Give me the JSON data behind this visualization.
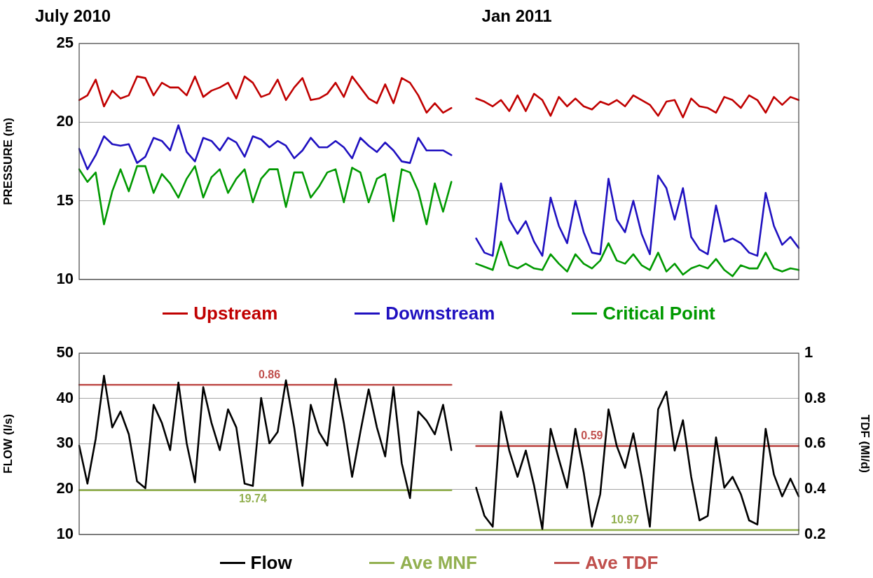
{
  "chart_data": [
    {
      "type": "line",
      "ylabel": "PRESSURE (m)",
      "annotations": [
        "July 2010",
        "Jan 2011"
      ],
      "categories": [
        null,
        null,
        null,
        null,
        null,
        null,
        null,
        null,
        null,
        null,
        null,
        null,
        null,
        null,
        null,
        null,
        null,
        null,
        null,
        null,
        null,
        null,
        null,
        null,
        null,
        null,
        null,
        null,
        null,
        null,
        null,
        null,
        null,
        null,
        null,
        null,
        null,
        null,
        null,
        null,
        null,
        null,
        null,
        null,
        null,
        null,
        null,
        null,
        null,
        null,
        null,
        null,
        null,
        null,
        null,
        null,
        null,
        null,
        null,
        null,
        null,
        null,
        null,
        null,
        null,
        null,
        null,
        null,
        null,
        null,
        null,
        null,
        null,
        null,
        null,
        null,
        null,
        null,
        null,
        null,
        null,
        null,
        null,
        null,
        null,
        null,
        null,
        null
      ],
      "ylim": [
        10,
        25
      ],
      "yticks": [
        10,
        15,
        20,
        25
      ],
      "grid": "y",
      "legend": "bottom",
      "tick_labels": "y",
      "series": [
        {
          "name": "Upstream",
          "color": "#c00000",
          "values": [
            21.4,
            21.7,
            22.7,
            21.0,
            22.0,
            21.5,
            21.7,
            22.9,
            22.8,
            21.7,
            22.5,
            22.2,
            22.2,
            21.7,
            22.9,
            21.6,
            22.0,
            22.2,
            22.5,
            21.5,
            22.9,
            22.5,
            21.6,
            21.8,
            22.7,
            21.4,
            22.2,
            22.8,
            21.4,
            21.5,
            21.8,
            22.5,
            21.6,
            22.9,
            22.2,
            21.5,
            21.2,
            22.4,
            21.2,
            22.8,
            22.5,
            21.7,
            20.6,
            21.2,
            20.6,
            20.9,
            null,
            null,
            null,
            null,
            null,
            null,
            null,
            null,
            null,
            null,
            null,
            null,
            null,
            null,
            null,
            null,
            null,
            null,
            null,
            null,
            null,
            null,
            null,
            null,
            null,
            null,
            null,
            null,
            null,
            null,
            null,
            null,
            null,
            null,
            null,
            null,
            null,
            null,
            null,
            null,
            null,
            null
          ]
        },
        {
          "name": "Downstream",
          "color": "#1f10c0",
          "values": [
            18.3,
            17.0,
            17.9,
            19.1,
            18.6,
            18.5,
            18.6,
            17.4,
            17.8,
            19.0,
            18.8,
            18.2,
            19.8,
            18.1,
            17.5,
            19.0,
            18.8,
            18.2,
            19.0,
            18.7,
            17.8,
            19.1,
            18.9,
            18.4,
            18.8,
            18.5,
            17.7,
            18.2,
            19.0,
            18.4,
            18.4,
            18.8,
            18.4,
            17.7,
            19.0,
            18.5,
            18.1,
            18.7,
            18.2,
            17.5,
            17.4,
            19.0,
            18.2,
            18.2,
            18.2,
            17.9,
            null,
            null,
            null,
            null,
            null,
            null,
            null,
            null,
            null,
            null,
            null,
            null,
            null,
            null,
            null,
            null,
            null,
            null,
            null,
            null,
            null,
            null,
            null,
            null,
            null,
            null,
            null,
            null,
            null,
            null,
            null,
            null,
            null,
            null,
            null,
            null,
            null,
            null,
            null,
            null,
            null,
            null
          ]
        },
        {
          "name": "Critical Point",
          "color": "#009900",
          "values": [
            17.0,
            16.2,
            16.8,
            13.5,
            15.6,
            17.0,
            15.6,
            17.2,
            17.2,
            15.5,
            16.7,
            16.1,
            15.2,
            16.4,
            17.2,
            15.2,
            16.5,
            17.0,
            15.5,
            16.4,
            17.0,
            14.9,
            16.4,
            17.0,
            17.0,
            14.6,
            16.8,
            16.8,
            15.2,
            15.9,
            16.8,
            17.0,
            14.9,
            17.1,
            16.8,
            14.9,
            16.4,
            16.7,
            13.7,
            17.0,
            16.8,
            15.6,
            13.5,
            16.1,
            14.3,
            16.2,
            null,
            null,
            null,
            null,
            null,
            null,
            null,
            null,
            null,
            null,
            null,
            null,
            null,
            null,
            null,
            null,
            null,
            null,
            null,
            null,
            null,
            null,
            null,
            null,
            null,
            null,
            null,
            null,
            null,
            null,
            null,
            null,
            null,
            null,
            null,
            null,
            null,
            null,
            null,
            null,
            null,
            null
          ]
        },
        {
          "color": "#c00000",
          "values": [
            null,
            null,
            null,
            null,
            null,
            null,
            null,
            null,
            null,
            null,
            null,
            null,
            null,
            null,
            null,
            null,
            null,
            null,
            null,
            null,
            null,
            null,
            null,
            null,
            null,
            null,
            null,
            null,
            null,
            null,
            null,
            null,
            null,
            null,
            null,
            null,
            null,
            null,
            null,
            null,
            null,
            null,
            null,
            null,
            null,
            null,
            null,
            null,
            21.5,
            21.3,
            21.0,
            21.4,
            20.7,
            21.7,
            20.7,
            21.8,
            21.4,
            20.4,
            21.6,
            21.0,
            21.5,
            21.0,
            20.8,
            21.3,
            21.1,
            21.4,
            21.0,
            21.7,
            21.4,
            21.1,
            20.4,
            21.3,
            21.4,
            20.3,
            21.5,
            21.0,
            20.9,
            20.6,
            21.6,
            21.4,
            20.9,
            21.7,
            21.4,
            20.6,
            21.6,
            21.1,
            21.6,
            21.4
          ]
        },
        {
          "color": "#1f10c0",
          "values": [
            null,
            null,
            null,
            null,
            null,
            null,
            null,
            null,
            null,
            null,
            null,
            null,
            null,
            null,
            null,
            null,
            null,
            null,
            null,
            null,
            null,
            null,
            null,
            null,
            null,
            null,
            null,
            null,
            null,
            null,
            null,
            null,
            null,
            null,
            null,
            null,
            null,
            null,
            null,
            null,
            null,
            null,
            null,
            null,
            null,
            null,
            null,
            null,
            12.6,
            11.7,
            11.5,
            16.1,
            13.8,
            12.9,
            13.7,
            12.4,
            11.5,
            15.2,
            13.4,
            12.3,
            15.0,
            13.0,
            11.7,
            11.6,
            16.4,
            13.8,
            13.0,
            15.0,
            12.9,
            11.6,
            16.6,
            15.8,
            13.8,
            15.8,
            12.7,
            11.9,
            11.6,
            14.7,
            12.4,
            12.6,
            12.3,
            11.7,
            11.5,
            15.5,
            13.4,
            12.2,
            12.7,
            12.0
          ]
        },
        {
          "color": "#009900",
          "values": [
            null,
            null,
            null,
            null,
            null,
            null,
            null,
            null,
            null,
            null,
            null,
            null,
            null,
            null,
            null,
            null,
            null,
            null,
            null,
            null,
            null,
            null,
            null,
            null,
            null,
            null,
            null,
            null,
            null,
            null,
            null,
            null,
            null,
            null,
            null,
            null,
            null,
            null,
            null,
            null,
            null,
            null,
            null,
            null,
            null,
            null,
            null,
            null,
            11.0,
            10.8,
            10.6,
            12.4,
            10.9,
            10.7,
            11.0,
            10.7,
            10.6,
            11.6,
            11.0,
            10.5,
            11.6,
            11.0,
            10.7,
            11.2,
            12.3,
            11.2,
            11.0,
            11.6,
            10.9,
            10.6,
            11.7,
            10.5,
            11.0,
            10.3,
            10.7,
            10.9,
            10.7,
            11.3,
            10.6,
            10.2,
            10.9,
            10.7,
            10.7,
            11.7,
            10.7,
            10.5,
            10.7,
            10.6
          ]
        }
      ]
    },
    {
      "type": "line",
      "ylabel": "FLOW (l/s)",
      "y2label": "TDF (Ml/d)",
      "categories": [
        null,
        null,
        null,
        null,
        null,
        null,
        null,
        null,
        null,
        null,
        null,
        null,
        null,
        null,
        null,
        null,
        null,
        null,
        null,
        null,
        null,
        null,
        null,
        null,
        null,
        null,
        null,
        null,
        null,
        null,
        null,
        null,
        null,
        null,
        null,
        null,
        null,
        null,
        null,
        null,
        null,
        null,
        null,
        null,
        null,
        null,
        null,
        null,
        null,
        null,
        null,
        null,
        null,
        null,
        null,
        null,
        null,
        null,
        null,
        null,
        null,
        null,
        null,
        null,
        null,
        null,
        null,
        null,
        null,
        null,
        null,
        null,
        null,
        null,
        null,
        null,
        null,
        null,
        null,
        null,
        null,
        null,
        null,
        null,
        null,
        null,
        null,
        null
      ],
      "ylim": [
        10,
        50
      ],
      "yticks": [
        10,
        20,
        30,
        40,
        50
      ],
      "y2lim": [
        0.2,
        1
      ],
      "y2ticks": [
        {
          "value": 0.2,
          "label": "0.2"
        },
        {
          "value": 0.4,
          "label": "0.4"
        },
        {
          "value": 0.6,
          "label": "0.6"
        },
        {
          "value": 0.8,
          "label": "0.8"
        },
        1
      ],
      "grid": "y",
      "legend": "bottom",
      "tick_labels": "y",
      "series": [
        {
          "name": "Flow",
          "color": "#000000",
          "values": [
            29.6,
            21.2,
            31.1,
            45.0,
            33.6,
            37.1,
            32.1,
            21.7,
            20.2,
            38.6,
            34.6,
            28.6,
            43.5,
            30.1,
            21.5,
            42.5,
            34.6,
            28.6,
            37.6,
            33.6,
            21.2,
            20.7,
            40.1,
            30.1,
            32.6,
            44.0,
            33.6,
            20.7,
            38.6,
            32.6,
            29.6,
            44.3,
            34.6,
            22.7,
            32.6,
            42.0,
            33.6,
            27.2,
            42.5,
            25.7,
            18.0,
            37.1,
            35.1,
            32.1,
            38.6,
            28.6,
            null,
            null,
            null,
            null,
            null,
            null,
            null,
            null,
            null,
            null,
            null,
            null,
            null,
            null,
            null,
            null,
            null,
            null,
            null,
            null,
            null,
            null,
            null,
            null,
            null,
            null,
            null,
            null,
            null,
            null,
            null,
            null,
            null,
            null,
            null,
            null,
            null,
            null,
            null,
            null,
            null,
            null
          ]
        },
        {
          "name": "Ave MNF",
          "color": "#92b050",
          "values": [
            19.74,
            19.74,
            19.74,
            19.74,
            19.74,
            19.74,
            19.74,
            19.74,
            19.74,
            19.74,
            19.74,
            19.74,
            19.74,
            19.74,
            19.74,
            19.74,
            19.74,
            19.74,
            19.74,
            19.74,
            19.74,
            19.74,
            19.74,
            19.74,
            19.74,
            19.74,
            19.74,
            19.74,
            19.74,
            19.74,
            19.74,
            19.74,
            19.74,
            19.74,
            19.74,
            19.74,
            19.74,
            19.74,
            19.74,
            19.74,
            19.74,
            19.74,
            19.74,
            19.74,
            19.74,
            19.74,
            null,
            null,
            null,
            null,
            null,
            null,
            null,
            null,
            null,
            null,
            null,
            null,
            null,
            null,
            null,
            null,
            null,
            null,
            null,
            null,
            null,
            null,
            null,
            null,
            null,
            null,
            null,
            null,
            null,
            null,
            null,
            null,
            null,
            null,
            null,
            null,
            null,
            null,
            null,
            null,
            null,
            null
          ],
          "value_labels": [
            null,
            null,
            null,
            null,
            null,
            null,
            null,
            null,
            null,
            null,
            null,
            null,
            null,
            null,
            null,
            null,
            null,
            null,
            null,
            null,
            null,
            "19.74",
            null,
            null,
            null,
            null,
            null,
            null,
            null,
            null,
            null,
            null,
            null,
            null,
            null,
            null,
            null,
            null,
            null,
            null,
            null,
            null,
            null,
            null,
            null,
            null,
            null,
            null,
            null,
            null,
            null,
            null,
            null,
            null,
            null,
            null,
            null,
            null,
            null,
            null,
            null,
            null,
            null,
            null,
            null,
            null,
            null,
            null,
            null,
            null,
            null,
            null,
            null,
            null,
            null,
            null,
            null,
            null,
            null,
            null,
            null,
            null,
            null,
            null,
            null,
            null,
            null,
            null
          ]
        },
        {
          "name": "Ave TDF",
          "color": "#c0504d",
          "axis": "y2",
          "values": [
            0.86,
            0.86,
            0.86,
            0.86,
            0.86,
            0.86,
            0.86,
            0.86,
            0.86,
            0.86,
            0.86,
            0.86,
            0.86,
            0.86,
            0.86,
            0.86,
            0.86,
            0.86,
            0.86,
            0.86,
            0.86,
            0.86,
            0.86,
            0.86,
            0.86,
            0.86,
            0.86,
            0.86,
            0.86,
            0.86,
            0.86,
            0.86,
            0.86,
            0.86,
            0.86,
            0.86,
            0.86,
            0.86,
            0.86,
            0.86,
            0.86,
            0.86,
            0.86,
            0.86,
            0.86,
            0.86,
            null,
            null,
            null,
            null,
            null,
            null,
            null,
            null,
            null,
            null,
            null,
            null,
            null,
            null,
            null,
            null,
            null,
            null,
            null,
            null,
            null,
            null,
            null,
            null,
            null,
            null,
            null,
            null,
            null,
            null,
            null,
            null,
            null,
            null,
            null,
            null,
            null,
            null,
            null,
            null,
            null,
            null
          ],
          "value_labels": [
            null,
            null,
            null,
            null,
            null,
            null,
            null,
            null,
            null,
            null,
            null,
            null,
            null,
            null,
            null,
            null,
            null,
            null,
            null,
            null,
            null,
            null,
            null,
            "0.86",
            null,
            null,
            null,
            null,
            null,
            null,
            null,
            null,
            null,
            null,
            null,
            null,
            null,
            null,
            null,
            null,
            null,
            null,
            null,
            null,
            null,
            null,
            null,
            null,
            null,
            null,
            null,
            null,
            null,
            null,
            null,
            null,
            null,
            null,
            null,
            null,
            null,
            null,
            null,
            null,
            null,
            null,
            null,
            null,
            null,
            null,
            null,
            null,
            null,
            null,
            null,
            null,
            null,
            null,
            null,
            null,
            null,
            null,
            null,
            null,
            null,
            null,
            null,
            null
          ]
        },
        {
          "color": "#000000",
          "values": [
            null,
            null,
            null,
            null,
            null,
            null,
            null,
            null,
            null,
            null,
            null,
            null,
            null,
            null,
            null,
            null,
            null,
            null,
            null,
            null,
            null,
            null,
            null,
            null,
            null,
            null,
            null,
            null,
            null,
            null,
            null,
            null,
            null,
            null,
            null,
            null,
            null,
            null,
            null,
            null,
            null,
            null,
            null,
            null,
            null,
            null,
            null,
            null,
            20.3,
            14.1,
            11.7,
            37.1,
            28.5,
            22.7,
            28.5,
            20.8,
            11.2,
            33.3,
            26.6,
            20.3,
            33.3,
            23.7,
            11.7,
            18.9,
            37.6,
            29.5,
            24.7,
            32.3,
            22.7,
            11.7,
            37.6,
            41.5,
            28.5,
            35.2,
            22.7,
            13.1,
            14.1,
            31.4,
            20.3,
            22.7,
            18.9,
            13.1,
            12.2,
            33.3,
            23.2,
            18.4,
            22.3,
            18.4
          ]
        },
        {
          "color": "#92b050",
          "values": [
            null,
            null,
            null,
            null,
            null,
            null,
            null,
            null,
            null,
            null,
            null,
            null,
            null,
            null,
            null,
            null,
            null,
            null,
            null,
            null,
            null,
            null,
            null,
            null,
            null,
            null,
            null,
            null,
            null,
            null,
            null,
            null,
            null,
            null,
            null,
            null,
            null,
            null,
            null,
            null,
            null,
            null,
            null,
            null,
            null,
            null,
            null,
            null,
            10.97,
            10.97,
            10.97,
            10.97,
            10.97,
            10.97,
            10.97,
            10.97,
            10.97,
            10.97,
            10.97,
            10.97,
            10.97,
            10.97,
            10.97,
            10.97,
            10.97,
            10.97,
            10.97,
            10.97,
            10.97,
            10.97,
            10.97,
            10.97,
            10.97,
            10.97,
            10.97,
            10.97,
            10.97,
            10.97,
            10.97,
            10.97,
            10.97,
            10.97,
            10.97,
            10.97,
            10.97,
            10.97,
            10.97,
            10.97
          ],
          "value_labels": [
            null,
            null,
            null,
            null,
            null,
            null,
            null,
            null,
            null,
            null,
            null,
            null,
            null,
            null,
            null,
            null,
            null,
            null,
            null,
            null,
            null,
            null,
            null,
            null,
            null,
            null,
            null,
            null,
            null,
            null,
            null,
            null,
            null,
            null,
            null,
            null,
            null,
            null,
            null,
            null,
            null,
            null,
            null,
            null,
            null,
            null,
            null,
            null,
            null,
            null,
            null,
            null,
            null,
            null,
            null,
            null,
            null,
            null,
            null,
            null,
            null,
            null,
            null,
            null,
            null,
            null,
            "10.97",
            null,
            null,
            null,
            null,
            null,
            null,
            null,
            null,
            null,
            null,
            null,
            null,
            null,
            null,
            null,
            null,
            null,
            null,
            null,
            null,
            null
          ]
        },
        {
          "color": "#c0504d",
          "axis": "y2",
          "values": [
            null,
            null,
            null,
            null,
            null,
            null,
            null,
            null,
            null,
            null,
            null,
            null,
            null,
            null,
            null,
            null,
            null,
            null,
            null,
            null,
            null,
            null,
            null,
            null,
            null,
            null,
            null,
            null,
            null,
            null,
            null,
            null,
            null,
            null,
            null,
            null,
            null,
            null,
            null,
            null,
            null,
            null,
            null,
            null,
            null,
            null,
            null,
            null,
            0.59,
            0.59,
            0.59,
            0.59,
            0.59,
            0.59,
            0.59,
            0.59,
            0.59,
            0.59,
            0.59,
            0.59,
            0.59,
            0.59,
            0.59,
            0.59,
            0.59,
            0.59,
            0.59,
            0.59,
            0.59,
            0.59,
            0.59,
            0.59,
            0.59,
            0.59,
            0.59,
            0.59,
            0.59,
            0.59,
            0.59,
            0.59,
            0.59,
            0.59,
            0.59,
            0.59,
            0.59,
            0.59,
            0.59,
            0.59
          ],
          "value_labels": [
            null,
            null,
            null,
            null,
            null,
            null,
            null,
            null,
            null,
            null,
            null,
            null,
            null,
            null,
            null,
            null,
            null,
            null,
            null,
            null,
            null,
            null,
            null,
            null,
            null,
            null,
            null,
            null,
            null,
            null,
            null,
            null,
            null,
            null,
            null,
            null,
            null,
            null,
            null,
            null,
            null,
            null,
            null,
            null,
            null,
            null,
            null,
            null,
            null,
            null,
            null,
            null,
            null,
            null,
            null,
            null,
            null,
            null,
            null,
            null,
            null,
            null,
            "0.59",
            null,
            null,
            null,
            null,
            null,
            null,
            null,
            null,
            null,
            null,
            null,
            null,
            null,
            null,
            null,
            null,
            null,
            null,
            null,
            null,
            null,
            null,
            null,
            null,
            null
          ]
        }
      ]
    }
  ]
}
